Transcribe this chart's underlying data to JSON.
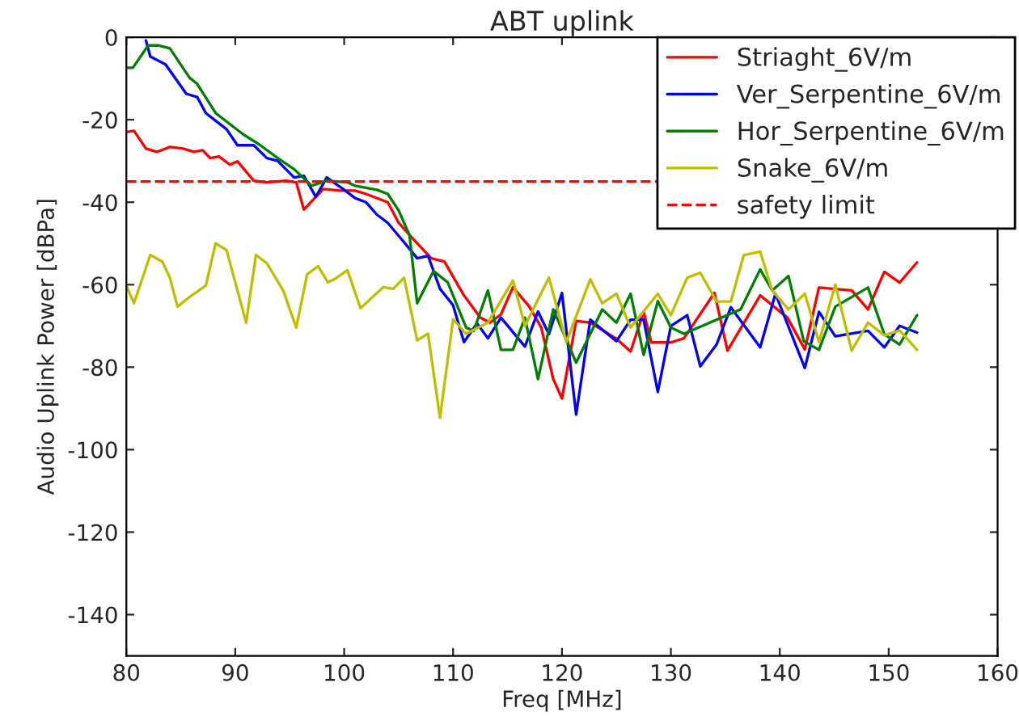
{
  "chart_data": {
    "type": "line",
    "title": "ABT uplink",
    "xlabel": "Freq [MHz]",
    "ylabel": "Audio Uplink Power [dBPa]",
    "xlim": [
      80,
      160
    ],
    "xticks": [
      80,
      90,
      100,
      110,
      120,
      130,
      140,
      150,
      160
    ],
    "ylim": [
      -150,
      0
    ],
    "yticks": [
      -140,
      -120,
      -100,
      -80,
      -60,
      -40,
      -20,
      0
    ],
    "grid": false,
    "legend": "top right",
    "series": [
      {
        "name": "Striaght_6V/m",
        "color": "#ff0000",
        "x": [
          80,
          80.7,
          81.8,
          82.8,
          84,
          85.2,
          86.2,
          87,
          87.7,
          88.5,
          89.5,
          90.2,
          91.7,
          92.9,
          94.7,
          95.6,
          96.3,
          97.4,
          98.1,
          99.6,
          101,
          102,
          104,
          105,
          106.6,
          108,
          109.2,
          111,
          112.5,
          113.4,
          114.4,
          115.5,
          117,
          118.1,
          119.2,
          120,
          121.3,
          122.6,
          125,
          126.3,
          127.5,
          128.2,
          130,
          131.2,
          134,
          135.2,
          138.2,
          140.7,
          142.3,
          143.6,
          146.6,
          148.1,
          149.6,
          151,
          152.6
        ],
        "values": [
          -23,
          -22.7,
          -27,
          -27.8,
          -26.6,
          -27,
          -27.8,
          -27.4,
          -29.3,
          -28.9,
          -30.9,
          -30.1,
          -34.8,
          -35.2,
          -34.8,
          -35.2,
          -41.8,
          -38.7,
          -36.8,
          -37.2,
          -37.2,
          -38,
          -40,
          -45,
          -49.7,
          -53.6,
          -54.4,
          -62.6,
          -68,
          -69.2,
          -67.2,
          -60.6,
          -65.3,
          -70.4,
          -82.9,
          -87.6,
          -68.8,
          -69.2,
          -73.1,
          -76.2,
          -66.6,
          -74,
          -74,
          -73,
          -62,
          -76,
          -62.6,
          -68,
          -75.7,
          -60.7,
          -61.4,
          -66,
          -56.9,
          -59.5,
          -54.6
        ]
      },
      {
        "name": "Ver_Serpentine_6V/m",
        "color": "#0000ff",
        "x": [
          81.8,
          82.2,
          83.6,
          85.5,
          86.5,
          87.3,
          89.2,
          90.2,
          91.7,
          92.9,
          93.9,
          95.4,
          96.3,
          97.4,
          98.4,
          100,
          101,
          102,
          103,
          104,
          105.5,
          106.7,
          107.7,
          108.8,
          110,
          111,
          112.2,
          113.2,
          114.4,
          116.6,
          117.8,
          118.8,
          120,
          121.3,
          122.6,
          125,
          126.3,
          127.5,
          128.8,
          130,
          131.5,
          132.7,
          134.2,
          135.5,
          138.2,
          139.6,
          142.3,
          143.6,
          145.1,
          148.1,
          149.6,
          151,
          152.6
        ],
        "values": [
          -0.8,
          -4.7,
          -6.6,
          -13.7,
          -14.5,
          -18.4,
          -22.3,
          -26.2,
          -26.2,
          -29.3,
          -30,
          -34,
          -33.6,
          -38.7,
          -34,
          -37,
          -39,
          -40,
          -43,
          -45,
          -49.7,
          -53.6,
          -53,
          -61,
          -65,
          -73.9,
          -69.4,
          -73,
          -68,
          -75,
          -66.5,
          -72,
          -62,
          -91.5,
          -68.5,
          -73.7,
          -68.5,
          -68.5,
          -86,
          -70,
          -67.4,
          -79.8,
          -74.5,
          -65.5,
          -75.2,
          -62.2,
          -80.2,
          -66.6,
          -72.5,
          -71.2,
          -75.2,
          -70,
          -71.6
        ]
      },
      {
        "name": "Hor_Serpentine_6V/m",
        "color": "#008000",
        "x": [
          80,
          80.6,
          82,
          83,
          84,
          85.8,
          86.5,
          88.2,
          90.7,
          92.2,
          93.9,
          95.4,
          97,
          98.4,
          100.3,
          101,
          103,
          104,
          105,
          106,
          106.7,
          108.2,
          109.5,
          111.2,
          111.9,
          113.2,
          114.4,
          115.5,
          116.6,
          117.8,
          119.2,
          121.3,
          123.7,
          125,
          126.3,
          127.5,
          128.8,
          130,
          131.2,
          136.4,
          138.2,
          139.3,
          140.8,
          142.2,
          143.6,
          145.1,
          148.1,
          149.6,
          151,
          152.6
        ],
        "values": [
          -7.4,
          -7.4,
          -2,
          -2,
          -2.7,
          -9.8,
          -11.3,
          -18.4,
          -23.5,
          -26,
          -29.3,
          -32,
          -36,
          -34.8,
          -35.2,
          -36,
          -37,
          -38,
          -42,
          -48,
          -64.5,
          -56.7,
          -59.4,
          -70.4,
          -71.2,
          -61.4,
          -75.8,
          -75.8,
          -68,
          -82.9,
          -66,
          -78.9,
          -66,
          -69.2,
          -62.2,
          -77,
          -64,
          -70.4,
          -71.9,
          -66,
          -56.3,
          -61.4,
          -57.9,
          -73.7,
          -75.8,
          -65.3,
          -60.7,
          -72,
          -74.5,
          -67.4
        ]
      },
      {
        "name": "Snake_6V/m",
        "color": "#bfbf00",
        "x": [
          80,
          80.7,
          82.2,
          83.3,
          84,
          84.7,
          86,
          87.3,
          88.2,
          89.2,
          91,
          91.9,
          92.9,
          94.4,
          95.6,
          96.6,
          97.6,
          98.5,
          99.1,
          100.3,
          101.5,
          103.6,
          104.5,
          105.5,
          106.7,
          107.7,
          108.8,
          110,
          111.2,
          113.2,
          115.5,
          116.6,
          118.8,
          120.4,
          122.6,
          123.7,
          125,
          126.3,
          128.8,
          130,
          131.5,
          132.7,
          134.2,
          135.5,
          136.7,
          138.2,
          139.3,
          140.8,
          142.3,
          143.6,
          145.1,
          146.6,
          148.1,
          149.6,
          151,
          152.6
        ],
        "values": [
          -60.2,
          -64.5,
          -52.8,
          -54.4,
          -58.3,
          -65.3,
          -62.6,
          -60.2,
          -50,
          -51.6,
          -69.2,
          -52.8,
          -54.8,
          -61.4,
          -70.4,
          -57.5,
          -55.5,
          -59.4,
          -58.7,
          -56.5,
          -65.7,
          -60.6,
          -61,
          -58.3,
          -73.5,
          -71.9,
          -92.3,
          -68.4,
          -71.9,
          -69.2,
          -59,
          -70,
          -58.3,
          -73.9,
          -58.7,
          -64.5,
          -62.2,
          -70.4,
          -62.2,
          -67.4,
          -58.3,
          -57.1,
          -64.1,
          -64.1,
          -52.8,
          -52,
          -61.4,
          -66,
          -62.2,
          -73.9,
          -60,
          -76,
          -69.2,
          -72.3,
          -71.1,
          -75.8
        ]
      }
    ],
    "ref_lines": [
      {
        "axis": "y",
        "value": -35,
        "label": "safety limit",
        "color": "#ff0000",
        "line_style": "dashed"
      }
    ]
  }
}
